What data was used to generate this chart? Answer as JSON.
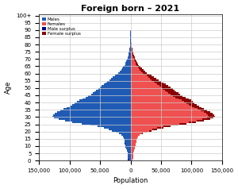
{
  "title": "Foreign born – 2021",
  "xlabel": "Population",
  "ylabel": "Age",
  "ages": [
    0,
    1,
    2,
    3,
    4,
    5,
    6,
    7,
    8,
    9,
    10,
    11,
    12,
    13,
    14,
    15,
    16,
    17,
    18,
    19,
    20,
    21,
    22,
    23,
    24,
    25,
    26,
    27,
    28,
    29,
    30,
    31,
    32,
    33,
    34,
    35,
    36,
    37,
    38,
    39,
    40,
    41,
    42,
    43,
    44,
    45,
    46,
    47,
    48,
    49,
    50,
    51,
    52,
    53,
    54,
    55,
    56,
    57,
    58,
    59,
    60,
    61,
    62,
    63,
    64,
    65,
    66,
    67,
    68,
    69,
    70,
    71,
    72,
    73,
    74,
    75,
    76,
    77,
    78,
    79,
    80,
    81,
    82,
    83,
    84,
    85,
    86,
    87,
    88,
    89,
    90,
    91,
    92,
    93,
    94,
    95,
    96,
    97,
    98,
    99,
    100
  ],
  "males": [
    4000,
    4200,
    4400,
    4600,
    4800,
    5200,
    5800,
    6400,
    7200,
    8000,
    8800,
    9200,
    9600,
    9800,
    10200,
    11000,
    12500,
    15000,
    19000,
    24000,
    30000,
    36000,
    44000,
    54000,
    66000,
    80000,
    95000,
    108000,
    118000,
    125000,
    128000,
    127000,
    124000,
    120000,
    115000,
    110000,
    105000,
    100000,
    96000,
    92000,
    88000,
    84000,
    79000,
    74000,
    69000,
    65000,
    62000,
    59000,
    56000,
    53000,
    50000,
    47000,
    44000,
    41000,
    38000,
    35000,
    32000,
    29000,
    26000,
    23000,
    20000,
    17500,
    15500,
    13500,
    11800,
    10200,
    9000,
    7900,
    6900,
    6000,
    5200,
    4500,
    3800,
    3200,
    2700,
    2300,
    1900,
    1600,
    1300,
    1100,
    900,
    750,
    600,
    480,
    380,
    290,
    220,
    160,
    110,
    75,
    48,
    30,
    18,
    10,
    6,
    3,
    2,
    1,
    1,
    1,
    1
  ],
  "females": [
    3800,
    4000,
    4200,
    4400,
    4600,
    5000,
    5500,
    6100,
    6900,
    7700,
    8500,
    8900,
    9300,
    9600,
    10000,
    10800,
    12200,
    15500,
    20500,
    27000,
    35000,
    44000,
    54000,
    65000,
    78000,
    92000,
    107000,
    120000,
    130000,
    136000,
    138000,
    137000,
    134000,
    130000,
    125000,
    120000,
    116000,
    112000,
    108000,
    105000,
    102000,
    99000,
    95000,
    90000,
    85000,
    81000,
    78000,
    75000,
    72000,
    69000,
    66000,
    62000,
    58000,
    54000,
    50000,
    46000,
    42000,
    38000,
    34000,
    30000,
    26500,
    23500,
    21000,
    18500,
    16000,
    14000,
    12400,
    11000,
    9800,
    8700,
    7700,
    6800,
    5900,
    5100,
    4400,
    3700,
    3100,
    2600,
    2100,
    1700,
    1400,
    1150,
    950,
    780,
    630,
    500,
    390,
    290,
    210,
    145,
    95,
    62,
    40,
    25,
    15,
    8,
    5,
    3,
    2,
    1,
    1
  ],
  "color_male": "#1f5bb5",
  "color_female": "#f05050",
  "color_male_surplus": "#00008b",
  "color_female_surplus": "#8b0000",
  "xlim": 150000,
  "background_color": "#ffffff",
  "grid_color": "#cccccc"
}
